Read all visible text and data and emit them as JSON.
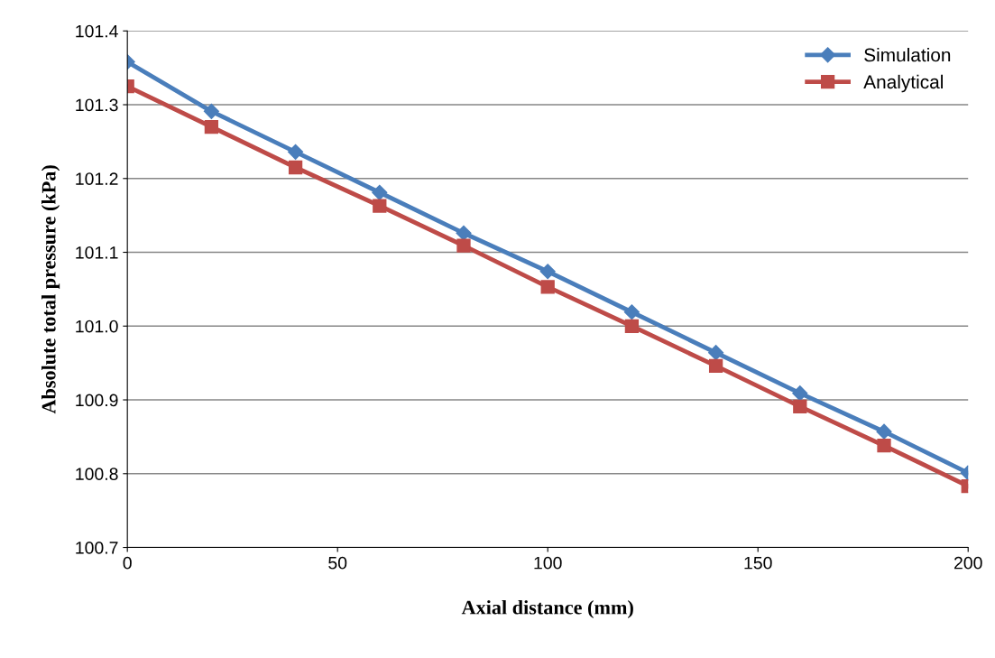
{
  "chart_data": {
    "type": "line",
    "xlabel": "Axial distance (mm)",
    "ylabel": "Absolute total pressure (kPa)",
    "x": [
      0,
      20,
      40,
      60,
      80,
      100,
      120,
      140,
      160,
      180,
      200
    ],
    "series": [
      {
        "name": "Simulation",
        "color": "#4a7ebb",
        "marker": "diamond",
        "values": [
          101.358,
          101.291,
          101.236,
          101.181,
          101.126,
          101.074,
          101.019,
          100.964,
          100.909,
          100.857,
          100.801
        ]
      },
      {
        "name": "Analytical",
        "color": "#be4b48",
        "marker": "square",
        "values": [
          101.325,
          101.27,
          101.215,
          101.163,
          101.109,
          101.053,
          101.0,
          100.946,
          100.891,
          100.838,
          100.783
        ]
      }
    ],
    "xlim": [
      0,
      200
    ],
    "xticks": [
      0,
      50,
      100,
      150,
      200
    ],
    "ylim": [
      100.7,
      101.4
    ],
    "yticks": [
      {
        "value": 100.7,
        "label": "100.7"
      },
      {
        "value": 100.8,
        "label": "100.8"
      },
      {
        "value": 100.9,
        "label": "100.9"
      },
      {
        "value": 101.0,
        "label": "101.0"
      },
      {
        "value": 101.1,
        "label": "101.1"
      },
      {
        "value": 101.2,
        "label": "101.2"
      },
      {
        "value": 101.3,
        "label": "101.3"
      },
      {
        "value": 101.4,
        "label": "101.4"
      }
    ],
    "grid": "y",
    "legend": "top right",
    "line_style": "solid"
  }
}
